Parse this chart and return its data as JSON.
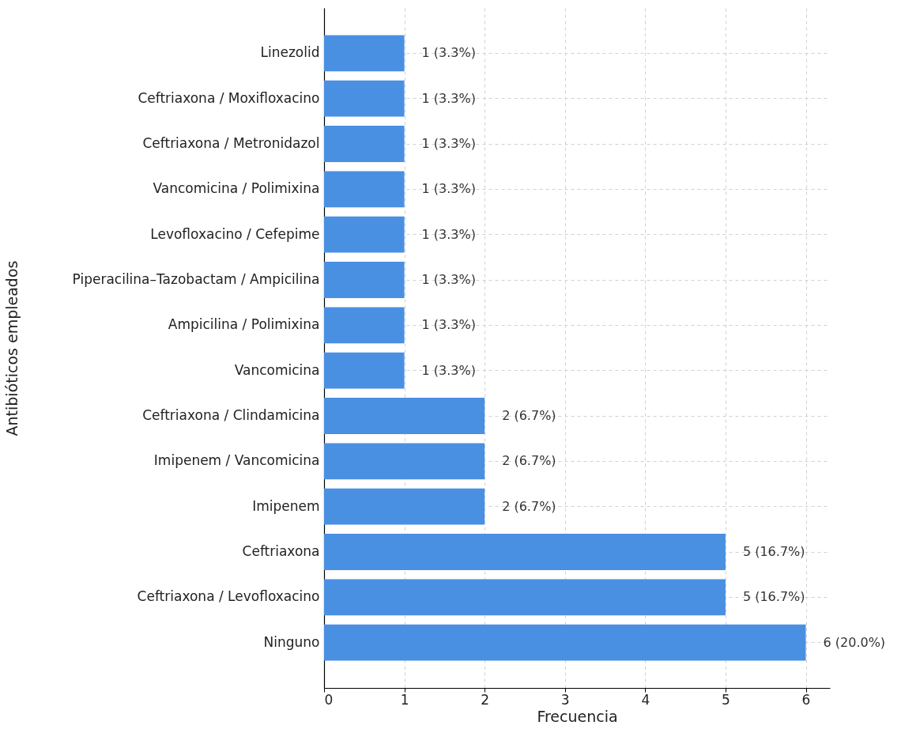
{
  "chart_data": {
    "type": "bar",
    "orientation": "horizontal",
    "categories": [
      "Linezolid",
      "Ceftriaxona / Moxifloxacino",
      "Ceftriaxona / Metronidazol",
      "Vancomicina / Polimixina",
      "Levofloxacino / Cefepime",
      "Piperacilina–Tazobactam / Ampicilina",
      "Ampicilina / Polimixina",
      "Vancomicina",
      "Ceftriaxona / Clindamicina",
      "Imipenem / Vancomicina",
      "Imipenem",
      "Ceftriaxona",
      "Ceftriaxona / Levofloxacino",
      "Ninguno"
    ],
    "values": [
      1,
      1,
      1,
      1,
      1,
      1,
      1,
      1,
      2,
      2,
      2,
      5,
      5,
      6
    ],
    "value_labels": [
      "1 (3.3%)",
      "1 (3.3%)",
      "1 (3.3%)",
      "1 (3.3%)",
      "1 (3.3%)",
      "1 (3.3%)",
      "1 (3.3%)",
      "1 (3.3%)",
      "2 (6.7%)",
      "2 (6.7%)",
      "2 (6.7%)",
      "5 (16.7%)",
      "5 (16.7%)",
      "6 (20.0%)"
    ],
    "color": "#4a90e2",
    "xlabel": "Frecuencia",
    "ylabel": "Antibióticos empleados",
    "xlim": [
      0,
      6.3
    ],
    "xticks": [
      0,
      1,
      2,
      3,
      4,
      5,
      6
    ],
    "grid": true
  }
}
